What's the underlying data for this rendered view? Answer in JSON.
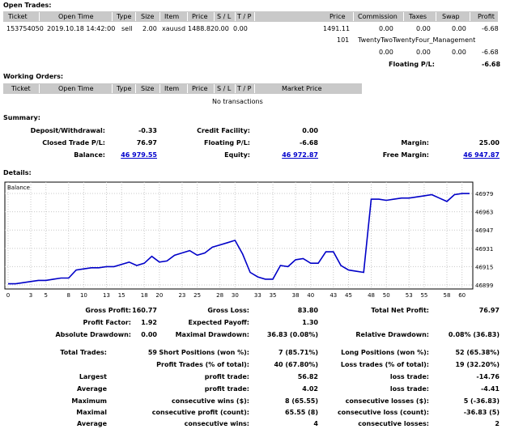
{
  "open_trades": {
    "title": "Open Trades:",
    "headers": [
      "Ticket",
      "Open Time",
      "Type",
      "Size",
      "Item",
      "Price",
      "S / L",
      "T / P",
      "Price",
      "Commission",
      "Taxes",
      "Swap",
      "Profit"
    ],
    "row": [
      "153754050",
      "2019.10.18 14:42:00",
      "sell",
      "2.00",
      "xauusd",
      "1488.82",
      "0.00",
      "0.00",
      "1491.11",
      "0.00",
      "0.00",
      "0.00",
      "-6.68"
    ],
    "comment_num": "101",
    "comment": "TwentyTwoTwentyFour_Management",
    "sub_commission": "0.00",
    "sub_taxes": "0.00",
    "sub_swap": "0.00",
    "sub_profit": "-6.68",
    "floating_label": "Floating P/L:",
    "floating_value": "-6.68"
  },
  "working_orders": {
    "title": "Working Orders:",
    "headers": [
      "Ticket",
      "Open Time",
      "Type",
      "Size",
      "Item",
      "Price",
      "S / L",
      "T / P",
      "Market Price"
    ],
    "empty": "No transactions"
  },
  "summary": {
    "title": "Summary:",
    "deposit_label": "Deposit/Withdrawal:",
    "deposit": "-0.33",
    "credit_label": "Credit Facility:",
    "credit": "0.00",
    "closed_label": "Closed Trade P/L:",
    "closed": "76.97",
    "floating_label": "Floating P/L:",
    "floating": "-6.68",
    "margin_label": "Margin:",
    "margin": "25.00",
    "balance_label": "Balance:",
    "balance": "46 979.55",
    "equity_label": "Equity:",
    "equity": "46 972.87",
    "free_margin_label": "Free Margin:",
    "free_margin": "46 947.87"
  },
  "details": {
    "title": "Details:"
  },
  "chart_data": {
    "type": "line",
    "title": "Balance",
    "x_ticks": [
      0,
      3,
      5,
      8,
      10,
      13,
      15,
      18,
      20,
      23,
      25,
      28,
      30,
      33,
      35,
      38,
      40,
      43,
      45,
      48,
      50,
      53,
      55,
      58,
      60
    ],
    "y_ticks": [
      46899,
      46915,
      46931,
      46947,
      46963,
      46979
    ],
    "ylim": [
      46899,
      46984
    ],
    "xlim": [
      0,
      61
    ],
    "grid": true,
    "color": "#0000c8",
    "series": [
      {
        "x": [
          0,
          1,
          2,
          3,
          4,
          5,
          6,
          7,
          8,
          9,
          10,
          11,
          12,
          13,
          14,
          15,
          16,
          17,
          18,
          19,
          20,
          21,
          22,
          23,
          24,
          25,
          26,
          27,
          28,
          29,
          30,
          31,
          32,
          33,
          34,
          35,
          36,
          37,
          38,
          39,
          40,
          41,
          42,
          43,
          44,
          45,
          46,
          47,
          48,
          49,
          50,
          51,
          52,
          53,
          54,
          55,
          56,
          57,
          58,
          59,
          60,
          61
        ],
        "y": [
          46900,
          46900,
          46901,
          46902,
          46903,
          46903,
          46904,
          46905,
          46905,
          46912,
          46913,
          46914,
          46914,
          46915,
          46915,
          46917,
          46919,
          46916,
          46918,
          46924,
          46919,
          46920,
          46925,
          46927,
          46929,
          46925,
          46927,
          46932,
          46934,
          46936,
          46938,
          46926,
          46910,
          46906,
          46904,
          46904,
          46916,
          46915,
          46921,
          46922,
          46918,
          46918,
          46928,
          46928,
          46916,
          46912,
          46911,
          46910,
          46974,
          46974,
          46973,
          46974,
          46975,
          46975,
          46976,
          46977,
          46978,
          46975,
          46972,
          46978,
          46979,
          46979
        ]
      }
    ]
  },
  "stats": {
    "gross_profit_label": "Gross Profit:",
    "gross_profit": "160.77",
    "gross_loss_label": "Gross Loss:",
    "gross_loss": "83.80",
    "total_net_label": "Total Net Profit:",
    "total_net": "76.97",
    "profit_factor_label": "Profit Factor:",
    "profit_factor": "1.92",
    "expected_payoff_label": "Expected Payoff:",
    "expected_payoff": "1.30",
    "abs_dd_label": "Absolute Drawdown:",
    "abs_dd": "0.00",
    "max_dd_label": "Maximal Drawdown:",
    "max_dd": "36.83 (0.08%)",
    "rel_dd_label": "Relative Drawdown:",
    "rel_dd": "0.08% (36.83)",
    "total_trades_label": "Total Trades:",
    "total_trades": "59",
    "short_label": "Short Positions (won %):",
    "short": "7 (85.71%)",
    "long_label": "Long Positions (won %):",
    "long": "52 (65.38%)",
    "profit_trades_label": "Profit Trades (% of total):",
    "profit_trades": "40 (67.80%)",
    "loss_trades_label": "Loss trades (% of total):",
    "loss_trades": "19 (32.20%)",
    "largest_label": "Largest",
    "largest_profit_label": "profit trade:",
    "largest_profit": "56.82",
    "largest_loss_label": "loss trade:",
    "largest_loss": "-14.76",
    "average_label": "Average",
    "avg_profit_label": "profit trade:",
    "avg_profit": "4.02",
    "avg_loss_label": "loss trade:",
    "avg_loss": "-4.41",
    "maximum_label": "Maximum",
    "max_cons_wins_label": "consecutive wins ($):",
    "max_cons_wins": "8 (65.55)",
    "max_cons_losses_label": "consecutive losses ($):",
    "max_cons_losses": "5 (-36.83)",
    "maximal_label": "Maximal",
    "maximal_profit_label": "consecutive profit (count):",
    "maximal_profit": "65.55 (8)",
    "maximal_loss_label": "consecutive loss (count):",
    "maximal_loss": "-36.83 (5)",
    "average2_label": "Average",
    "avg_cons_wins_label": "consecutive wins:",
    "avg_cons_wins": "4",
    "avg_cons_losses_label": "consecutive losses:",
    "avg_cons_losses": "2"
  }
}
